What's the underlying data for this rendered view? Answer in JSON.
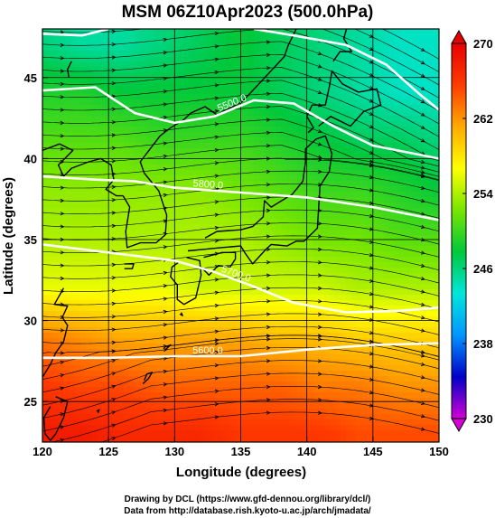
{
  "chart_data": {
    "type": "heatmap",
    "title": "MSM 06Z10Apr2023 (500.0hPa)",
    "xlabel": "Longitude (degrees)",
    "ylabel": "Latitude  (degrees)",
    "xlim": [
      120,
      150
    ],
    "ylim": [
      22.5,
      48
    ],
    "xticks": [
      120,
      125,
      130,
      135,
      140,
      145,
      150
    ],
    "yticks": [
      25,
      30,
      35,
      40,
      45
    ],
    "colorbar": {
      "range": [
        230,
        270
      ],
      "ticks": [
        230,
        238,
        246,
        254,
        262,
        270
      ],
      "colors": [
        "#d400d4",
        "#0000c8",
        "#0096ff",
        "#00e6dc",
        "#00c83c",
        "#78e600",
        "#ffff00",
        "#ffaa00",
        "#ff3c00",
        "#e60000"
      ]
    },
    "contours": [
      {
        "label": "5600.0",
        "points": [
          [
            120,
            27.7
          ],
          [
            125,
            27.7
          ],
          [
            130,
            27.8
          ],
          [
            135,
            27.8
          ],
          [
            140,
            28.2
          ],
          [
            145,
            28.5
          ],
          [
            150,
            28.6
          ]
        ]
      },
      {
        "label": "5700.0",
        "points": [
          [
            120,
            34.7
          ],
          [
            125,
            34.2
          ],
          [
            130,
            33.7
          ],
          [
            133,
            33.0
          ],
          [
            136,
            32.1
          ],
          [
            139,
            31.1
          ],
          [
            143,
            30.5
          ],
          [
            147,
            30.6
          ],
          [
            150,
            30.8
          ]
        ]
      },
      {
        "label": "5800.0",
        "points": [
          [
            120,
            38.9
          ],
          [
            124,
            38.7
          ],
          [
            127,
            38.6
          ],
          [
            130,
            38.2
          ],
          [
            135,
            37.9
          ],
          [
            140,
            37.6
          ],
          [
            145,
            37.0
          ],
          [
            150,
            36.2
          ]
        ]
      },
      {
        "label": "5500.0",
        "points": [
          [
            120,
            44.2
          ],
          [
            124,
            44.4
          ],
          [
            127,
            42.8
          ],
          [
            130,
            42.2
          ],
          [
            133,
            42.6
          ],
          [
            136,
            43.6
          ],
          [
            139,
            43.4
          ],
          [
            142,
            42.0
          ],
          [
            145,
            40.8
          ],
          [
            150,
            40.0
          ]
        ]
      },
      {
        "label": "",
        "points": [
          [
            120,
            47.7
          ],
          [
            123,
            47.6
          ],
          [
            125,
            48.0
          ]
        ]
      },
      {
        "label": "",
        "points": [
          [
            136,
            48.0
          ],
          [
            139,
            47.6
          ],
          [
            143,
            47.0
          ],
          [
            146,
            45.8
          ],
          [
            148.5,
            44.0
          ],
          [
            150,
            43.0
          ]
        ]
      }
    ],
    "temperature_field": [
      {
        "lat": 47,
        "values": [
          246,
          245,
          245,
          246,
          247,
          248,
          247,
          246,
          245,
          244,
          244
        ]
      },
      {
        "lat": 44,
        "values": [
          249,
          249,
          248,
          248,
          248,
          248,
          247,
          246,
          245,
          244,
          244
        ]
      },
      {
        "lat": 41,
        "values": [
          251,
          251,
          251,
          250,
          250,
          250,
          249,
          248,
          247,
          247,
          246
        ]
      },
      {
        "lat": 38,
        "values": [
          253,
          253,
          253,
          253,
          253,
          252,
          251,
          250,
          250,
          249,
          248
        ]
      },
      {
        "lat": 35,
        "values": [
          254,
          254,
          254,
          254,
          254,
          254,
          253,
          252,
          252,
          251,
          251
        ]
      },
      {
        "lat": 32,
        "values": [
          256,
          256,
          256,
          256,
          255,
          255,
          255,
          255,
          254,
          254,
          254
        ]
      },
      {
        "lat": 29,
        "values": [
          263,
          262,
          261,
          261,
          261,
          261,
          260,
          260,
          259,
          259,
          259
        ]
      },
      {
        "lat": 26,
        "values": [
          266,
          265,
          265,
          264,
          264,
          264,
          264,
          263,
          263,
          262,
          262
        ]
      },
      {
        "lat": 23,
        "values": [
          268,
          268,
          267,
          267,
          267,
          266,
          266,
          266,
          265,
          265,
          265
        ]
      }
    ],
    "field_lons": [
      120,
      123,
      126,
      129,
      132,
      135,
      138,
      141,
      144,
      147,
      150
    ],
    "grid": true
  },
  "credits": {
    "line1": "Drawing by DCL (https://www.gfd-dennou.org/library/dcl/)",
    "line2": "Data from http://database.rish.kyoto-u.ac.jp/arch/jmadata/"
  }
}
